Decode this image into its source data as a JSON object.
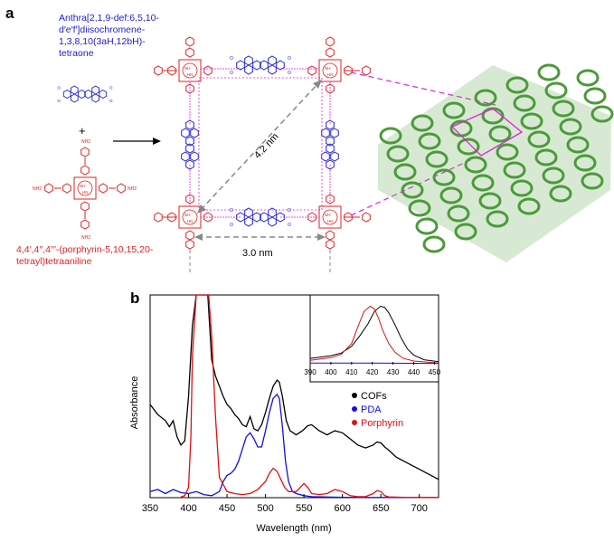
{
  "panel_a": {
    "letter": "a",
    "anthra_name_lines": [
      "Anthra[2,1,9-def:6,5,10-",
      "d′e′f′]diisochromene-",
      "1,3,8,10(3aH,12bH)-",
      "tetraone"
    ],
    "plus_sign": "+",
    "porphyrin_name_lines": [
      "4,4′,4′′,4′′′-(porphyrin-5,10,15,20-",
      "tetrayl)tetraaniline"
    ],
    "diag_label": "4.2 nm",
    "horiz_label": "3.0 nm",
    "colors": {
      "pda": "#2020d0",
      "porphyrin": "#e02020",
      "magenta": "#e020e0",
      "cof_3d": "#4c9a3c",
      "dash": "#888888"
    }
  },
  "panel_b": {
    "letter": "b",
    "inset_x_ticks": [
      "390",
      "400",
      "410",
      "420",
      "430",
      "440",
      "450"
    ],
    "legend": [
      {
        "label": "COFs",
        "color": "#000000"
      },
      {
        "label": "PDA",
        "color": "#1010e0"
      },
      {
        "label": "Porphyrin",
        "color": "#e01010"
      }
    ]
  },
  "chart_data": {
    "type": "line",
    "xlabel": "Wavelength (nm)",
    "ylabel": "Absorbance",
    "xlim": [
      350,
      725
    ],
    "ylim": [
      0,
      1
    ],
    "x_ticks": [
      350,
      400,
      450,
      500,
      550,
      600,
      650,
      700
    ],
    "series": [
      {
        "name": "COFs",
        "color": "#000000",
        "x": [
          350,
          360,
          370,
          375,
          380,
          385,
          390,
          395,
          400,
          405,
          410,
          415,
          420,
          425,
          430,
          435,
          440,
          445,
          450,
          455,
          460,
          465,
          470,
          475,
          480,
          485,
          490,
          495,
          500,
          505,
          510,
          515,
          518,
          522,
          527,
          532,
          540,
          548,
          555,
          560,
          565,
          570,
          580,
          590,
          600,
          610,
          620,
          630,
          640,
          645,
          650,
          655,
          660,
          670,
          680,
          690,
          700,
          710,
          725
        ],
        "y": [
          0.46,
          0.41,
          0.38,
          0.35,
          0.38,
          0.3,
          0.26,
          0.28,
          0.5,
          0.85,
          1.0,
          1.0,
          1.0,
          1.0,
          0.68,
          0.6,
          0.55,
          0.5,
          0.46,
          0.44,
          0.41,
          0.39,
          0.36,
          0.35,
          0.4,
          0.34,
          0.33,
          0.36,
          0.42,
          0.49,
          0.55,
          0.58,
          0.57,
          0.5,
          0.38,
          0.33,
          0.31,
          0.33,
          0.355,
          0.36,
          0.345,
          0.33,
          0.31,
          0.33,
          0.32,
          0.29,
          0.26,
          0.245,
          0.26,
          0.275,
          0.27,
          0.25,
          0.235,
          0.2,
          0.18,
          0.16,
          0.14,
          0.12,
          0.09
        ]
      },
      {
        "name": "PDA",
        "color": "#1010e0",
        "x": [
          350,
          360,
          370,
          380,
          390,
          400,
          410,
          420,
          430,
          440,
          445,
          450,
          455,
          460,
          465,
          470,
          475,
          480,
          485,
          490,
          495,
          500,
          505,
          510,
          515,
          518,
          522,
          526,
          530,
          535,
          540,
          550,
          560,
          580,
          600,
          650,
          700,
          725
        ],
        "y": [
          0.03,
          0.04,
          0.02,
          0.04,
          0.025,
          0.02,
          0.03,
          0.015,
          0.01,
          0.03,
          0.08,
          0.11,
          0.12,
          0.14,
          0.18,
          0.24,
          0.3,
          0.32,
          0.29,
          0.25,
          0.25,
          0.33,
          0.42,
          0.49,
          0.51,
          0.49,
          0.35,
          0.18,
          0.08,
          0.03,
          0.02,
          0.01,
          0.005,
          0.003,
          0.002,
          0.001,
          0.001,
          0.001
        ]
      },
      {
        "name": "Porphyrin",
        "color": "#e01010",
        "x": [
          390,
          395,
          400,
          403,
          405,
          410,
          414,
          418,
          420,
          423,
          426,
          430,
          435,
          440,
          450,
          460,
          470,
          480,
          490,
          500,
          505,
          510,
          515,
          520,
          525,
          530,
          540,
          545,
          550,
          555,
          560,
          570,
          580,
          590,
          600,
          610,
          620,
          630,
          640,
          645,
          650,
          655,
          660,
          680,
          700,
          725
        ],
        "y": [
          0.003,
          0.01,
          0.05,
          0.3,
          0.7,
          1.0,
          1.0,
          1.0,
          1.0,
          1.0,
          1.0,
          0.8,
          0.4,
          0.1,
          0.03,
          0.02,
          0.015,
          0.02,
          0.04,
          0.08,
          0.12,
          0.145,
          0.13,
          0.09,
          0.05,
          0.03,
          0.03,
          0.05,
          0.07,
          0.05,
          0.02,
          0.015,
          0.02,
          0.04,
          0.03,
          0.01,
          0.005,
          0.005,
          0.02,
          0.035,
          0.03,
          0.01,
          0.004,
          0.002,
          0.001,
          0.001
        ]
      }
    ],
    "inset": {
      "type": "line",
      "xlim": [
        390,
        452
      ],
      "series": [
        {
          "name": "COFs",
          "color": "#000000",
          "x": [
            390,
            400,
            405,
            410,
            414,
            418,
            421,
            424,
            426,
            428,
            431,
            434,
            437,
            440,
            445,
            452
          ],
          "y": [
            0.08,
            0.12,
            0.16,
            0.26,
            0.42,
            0.6,
            0.78,
            0.86,
            0.84,
            0.76,
            0.58,
            0.38,
            0.22,
            0.13,
            0.06,
            0.03
          ]
        },
        {
          "name": "Porphyrin",
          "color": "#e01010",
          "x": [
            390,
            400,
            405,
            410,
            413,
            416,
            419,
            421,
            423,
            425,
            428,
            431,
            435,
            440,
            452
          ],
          "y": [
            0.05,
            0.09,
            0.14,
            0.3,
            0.55,
            0.78,
            0.86,
            0.82,
            0.68,
            0.5,
            0.3,
            0.17,
            0.08,
            0.04,
            0.01
          ]
        },
        {
          "name": "PDA",
          "color": "#1010e0",
          "x": [
            390,
            420,
            452
          ],
          "y": [
            0.01,
            0.01,
            0.005
          ]
        }
      ]
    }
  }
}
